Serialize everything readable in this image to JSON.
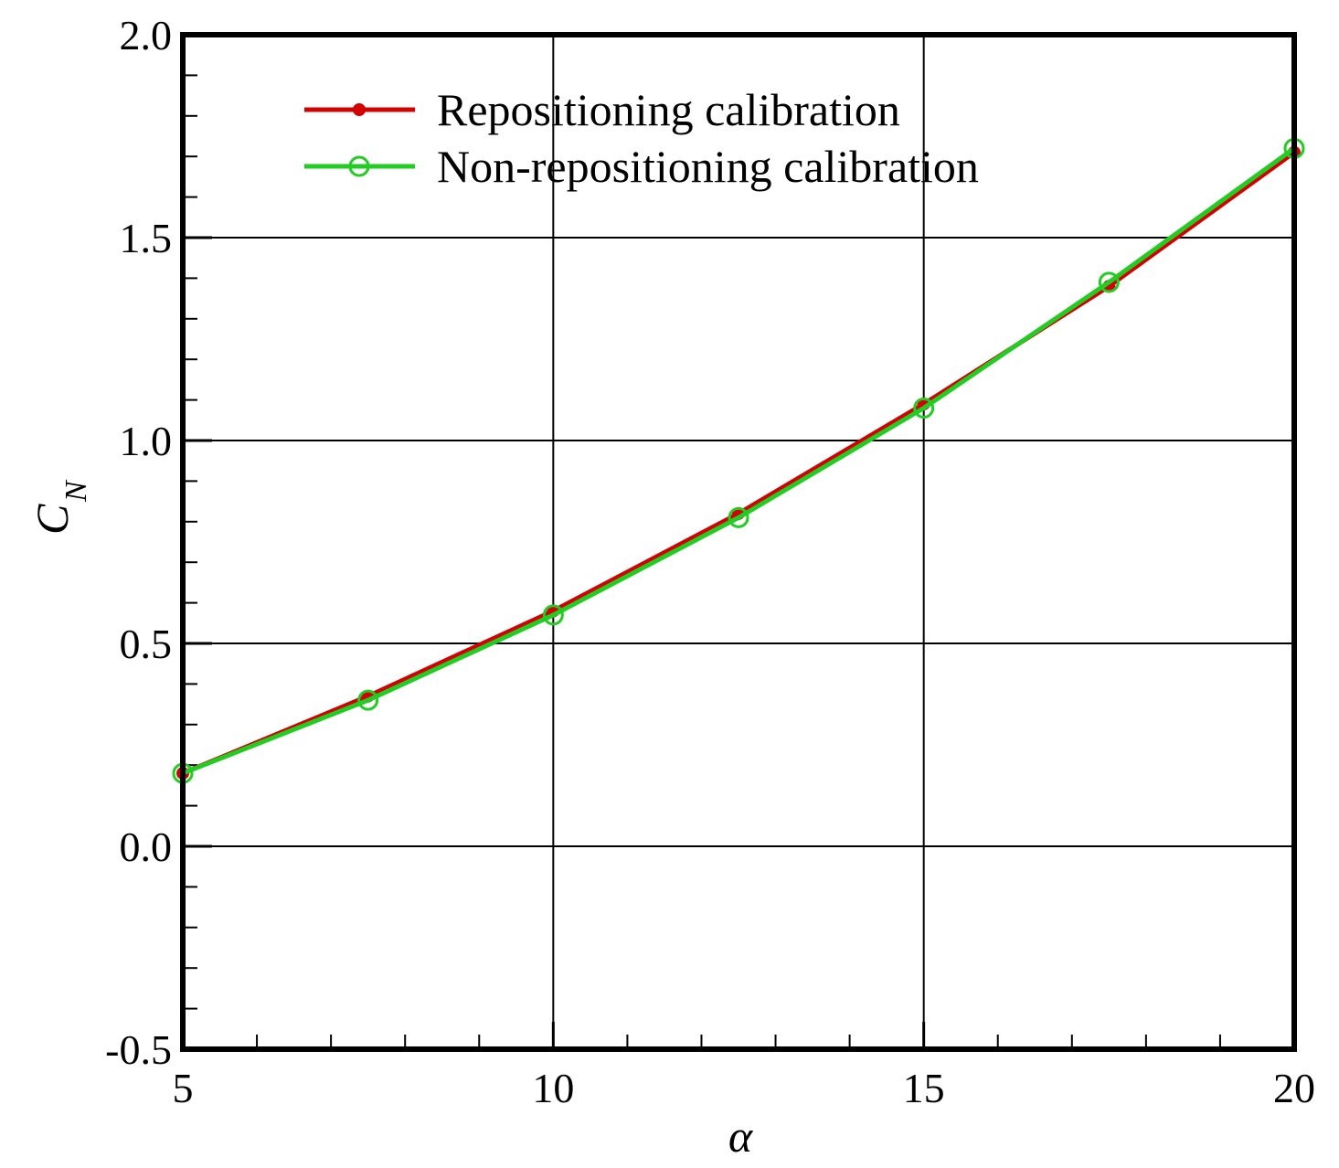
{
  "chart_data": {
    "type": "line",
    "xlabel": "α",
    "ylabel": "C",
    "ylabel_sub": "N",
    "xlim": [
      5,
      20
    ],
    "ylim": [
      -0.5,
      2.0
    ],
    "xticks": [
      "5",
      "10",
      "15",
      "20"
    ],
    "yticks": [
      "-0.5",
      "0.0",
      "0.5",
      "1.0",
      "1.5",
      "2.0"
    ],
    "grid": true,
    "legend_position": "top-left",
    "x": [
      5,
      7.5,
      10,
      12.5,
      15,
      17.5,
      20
    ],
    "series": [
      {
        "name": "Repositioning calibration",
        "marker": "filled-circle",
        "color": "#d40000",
        "values": [
          0.18,
          0.37,
          0.58,
          0.82,
          1.09,
          1.38,
          1.71
        ]
      },
      {
        "name": "Non-repositioning calibration",
        "marker": "open-circle",
        "color": "#22cc22",
        "values": [
          0.18,
          0.36,
          0.57,
          0.81,
          1.08,
          1.39,
          1.72
        ]
      }
    ]
  }
}
